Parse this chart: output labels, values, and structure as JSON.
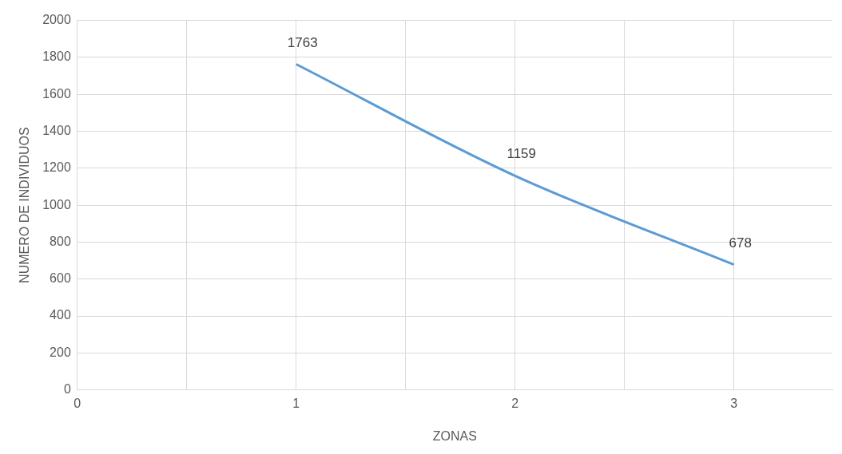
{
  "chart_data": {
    "type": "line",
    "xlabel": "ZONAS",
    "ylabel": "NUMERO DE INDIVIDUOS",
    "x": [
      1,
      2,
      3
    ],
    "values": [
      1763,
      1159,
      678
    ],
    "color": "#5b9bd5",
    "xlim": [
      0,
      3.45
    ],
    "xticks": [
      0,
      {
        "value": 0.5,
        "label": null
      },
      1,
      {
        "value": 1.5,
        "label": null
      },
      2,
      {
        "value": 2.5,
        "label": null
      },
      3
    ],
    "ylim": [
      0,
      2000
    ],
    "yticks": [
      0,
      200,
      400,
      600,
      800,
      1000,
      1200,
      1400,
      1600,
      1800,
      2000
    ],
    "grid": true,
    "data_labels": true,
    "marker": "none",
    "line_style": "solid"
  }
}
